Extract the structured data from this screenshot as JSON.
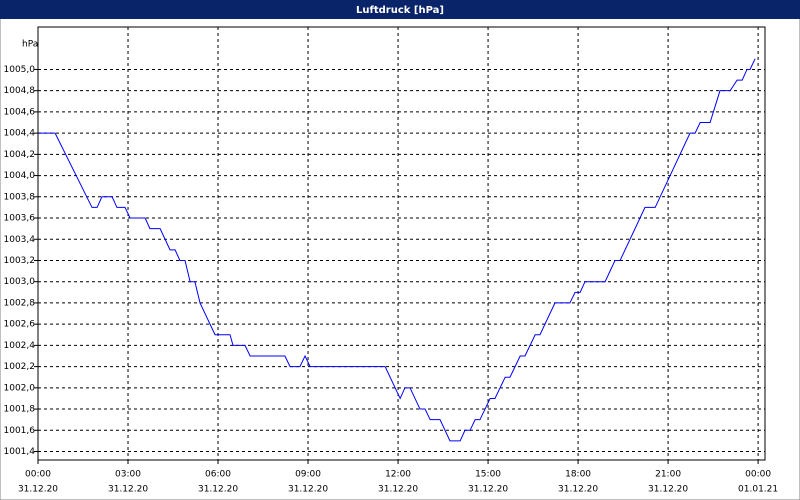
{
  "chart_data": {
    "type": "line",
    "title": "Luftdruck [hPa]",
    "y_label": "hPa",
    "x": [
      0,
      0.57,
      1.8,
      1.97,
      2.13,
      2.47,
      2.63,
      2.9,
      3.07,
      3.57,
      3.73,
      4.07,
      4.4,
      4.57,
      4.73,
      4.9,
      5.07,
      5.23,
      5.4,
      5.9,
      6.4,
      6.5,
      6.9,
      7.07,
      8.23,
      8.4,
      8.73,
      8.9,
      9.07,
      11.57,
      12.07,
      12.23,
      12.4,
      12.73,
      12.9,
      13.07,
      13.4,
      13.73,
      14.07,
      14.23,
      14.4,
      14.57,
      14.73,
      15.07,
      15.23,
      15.57,
      15.73,
      16.07,
      16.23,
      16.57,
      16.73,
      17.23,
      17.73,
      17.9,
      18.07,
      18.23,
      18.9,
      19.23,
      19.4,
      20.23,
      20.57,
      21.73,
      21.9,
      22.07,
      22.4,
      22.73,
      23.07,
      23.3,
      23.47,
      23.63,
      23.73,
      23.9
    ],
    "series": [
      {
        "color": "#0000ff",
        "values": [
          1004.4,
          1004.4,
          1003.7,
          1003.7,
          1003.8,
          1003.8,
          1003.7,
          1003.7,
          1003.6,
          1003.6,
          1003.5,
          1003.5,
          1003.3,
          1003.3,
          1003.2,
          1003.2,
          1003.0,
          1003.0,
          1002.8,
          1002.5,
          1002.5,
          1002.4,
          1002.4,
          1002.3,
          1002.3,
          1002.2,
          1002.2,
          1002.3,
          1002.2,
          1002.2,
          1001.9,
          1002.0,
          1002.0,
          1001.8,
          1001.8,
          1001.7,
          1001.7,
          1001.5,
          1001.5,
          1001.6,
          1001.6,
          1001.7,
          1001.7,
          1001.9,
          1001.9,
          1002.1,
          1002.1,
          1002.3,
          1002.3,
          1002.5,
          1002.5,
          1002.8,
          1002.8,
          1002.9,
          1002.9,
          1003.0,
          1003.0,
          1003.2,
          1003.2,
          1003.7,
          1003.7,
          1004.4,
          1004.4,
          1004.5,
          1004.5,
          1004.8,
          1004.8,
          1004.9,
          1004.9,
          1005.0,
          1005.0,
          1005.1
        ]
      }
    ],
    "xlim": [
      0,
      24.23
    ],
    "xticks": [
      {
        "value": 0,
        "label": "00:00",
        "date": "31.12.20"
      },
      {
        "value": 3,
        "label": "03:00",
        "date": "31.12.20"
      },
      {
        "value": 6,
        "label": "06:00",
        "date": "31.12.20"
      },
      {
        "value": 9,
        "label": "09:00",
        "date": "31.12.20"
      },
      {
        "value": 12,
        "label": "12:00",
        "date": "31.12.20"
      },
      {
        "value": 15,
        "label": "15:00",
        "date": "31.12.20"
      },
      {
        "value": 18,
        "label": "18:00",
        "date": "31.12.20"
      },
      {
        "value": 21,
        "label": "21:00",
        "date": "31.12.20"
      },
      {
        "value": 24,
        "label": "00:00",
        "date": "01.01.21"
      }
    ],
    "ylim": [
      1001.32,
      1005.4
    ],
    "yticks": [
      {
        "value": 1001.4,
        "label": "1001,4"
      },
      {
        "value": 1001.6,
        "label": "1001,6"
      },
      {
        "value": 1001.8,
        "label": "1001,8"
      },
      {
        "value": 1002.0,
        "label": "1002,0"
      },
      {
        "value": 1002.2,
        "label": "1002,2"
      },
      {
        "value": 1002.4,
        "label": "1002,4"
      },
      {
        "value": 1002.6,
        "label": "1002,6"
      },
      {
        "value": 1002.8,
        "label": "1002,8"
      },
      {
        "value": 1003.0,
        "label": "1003,0"
      },
      {
        "value": 1003.2,
        "label": "1003,2"
      },
      {
        "value": 1003.4,
        "label": "1003,4"
      },
      {
        "value": 1003.6,
        "label": "1003,6"
      },
      {
        "value": 1003.8,
        "label": "1003,8"
      },
      {
        "value": 1004.0,
        "label": "1004,0"
      },
      {
        "value": 1004.2,
        "label": "1004,2"
      },
      {
        "value": 1004.4,
        "label": "1004,4"
      },
      {
        "value": 1004.6,
        "label": "1004,6"
      },
      {
        "value": 1004.8,
        "label": "1004,8"
      },
      {
        "value": 1005.0,
        "label": "1005,0"
      }
    ],
    "grid": true
  }
}
